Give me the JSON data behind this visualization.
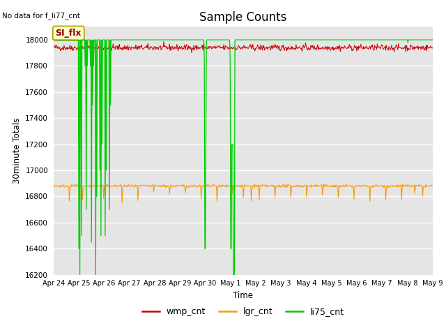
{
  "title": "Sample Counts",
  "ylabel": "30minute Totals",
  "xlabel": "Time",
  "no_data_text": "No data for f_li77_cnt",
  "annotation_text": "SI_flx",
  "ylim": [
    16200,
    18100
  ],
  "background_color": "#e5e5e5",
  "grid_color": "white",
  "wmp_color": "#cc0000",
  "lgr_color": "#ff9900",
  "li75_color": "#00cc00",
  "wmp_base": 17940,
  "lgr_base": 16880,
  "li75_base": 18000,
  "x_ticks": [
    0,
    1,
    2,
    3,
    4,
    5,
    6,
    7,
    8,
    9,
    10,
    11,
    12,
    13,
    14,
    15
  ],
  "x_tick_labels": [
    "Apr 24",
    "Apr 25",
    "Apr 26",
    "Apr 27",
    "Apr 28",
    "Apr 29",
    "Apr 30",
    "May 1",
    "May 2",
    "May 3",
    "May 4",
    "May 5",
    "May 6",
    "May 7",
    "May 8",
    "May 9"
  ],
  "legend_labels": [
    "wmp_cnt",
    "lgr_cnt",
    "li75_cnt"
  ]
}
